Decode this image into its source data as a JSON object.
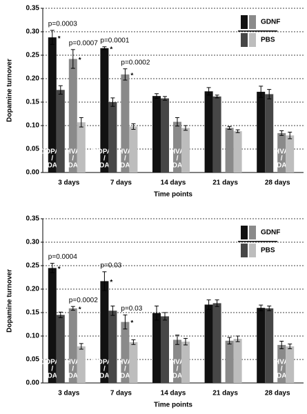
{
  "chart_data": [
    {
      "type": "bar",
      "categories": [
        "3 days",
        "7 days",
        "14 days",
        "21 days",
        "28 days"
      ],
      "xlabel": "Time points",
      "ylabel": "Dopamine turnover",
      "ylim": [
        0,
        0.35
      ],
      "yticks": [
        {
          "value": 0,
          "label": "0.00"
        },
        {
          "value": 0.05,
          "label": "0.05"
        },
        {
          "value": 0.1,
          "label": "0.10"
        },
        {
          "value": 0.15,
          "label": "0.15"
        },
        {
          "value": 0.2,
          "label": "0.20"
        },
        {
          "value": 0.25,
          "label": "0.25"
        },
        {
          "value": 0.3,
          "label": "0.30"
        },
        {
          "value": 0.35,
          "label": "0.35"
        }
      ],
      "grid": true,
      "series": [
        {
          "name": "GDNF",
          "color": "#111111",
          "values": [
            0.288,
            0.265,
            0.163,
            0.173,
            0.172
          ],
          "errors": [
            0.015,
            0.003,
            0.005,
            0.008,
            0.012
          ],
          "p_labels": [
            "p=0.0003",
            "p=0.0001",
            null,
            null,
            null
          ],
          "markers": [
            "*",
            "*",
            null,
            null,
            null
          ],
          "inner_labels": [
            [
              "DOPAC",
              "/",
              "DA"
            ],
            [
              "DOPAC",
              "/",
              "DA"
            ],
            null,
            null,
            null
          ]
        },
        {
          "name": "PBS",
          "color": "#474747",
          "values": [
            0.176,
            0.15,
            0.158,
            0.162,
            0.167
          ],
          "errors": [
            0.009,
            0.009,
            0.004,
            0.003,
            0.01
          ]
        },
        {
          "name": "GDNF",
          "color": "#8a8a8a",
          "values": [
            0.242,
            0.209,
            0.108,
            0.095,
            0.084
          ],
          "errors": [
            0.02,
            0.012,
            0.009,
            0.003,
            0.005
          ],
          "p_labels": [
            "p=0.0007",
            "p=0.0002",
            null,
            null,
            null
          ],
          "markers": [
            "*",
            "*",
            null,
            null,
            null
          ],
          "inner_labels": [
            [
              "HVA",
              "/",
              "DA"
            ],
            [
              "HVA",
              "/",
              "DA"
            ],
            [
              "HVA",
              "/",
              "DA"
            ],
            null,
            [
              "HVA",
              "/",
              "DA"
            ]
          ]
        },
        {
          "name": "PBS",
          "color": "#bdbdbd",
          "values": [
            0.107,
            0.098,
            0.095,
            0.088,
            0.079
          ],
          "errors": [
            0.01,
            0.006,
            0.005,
            0.003,
            0.007
          ]
        }
      ]
    },
    {
      "type": "bar",
      "categories": [
        "3 days",
        "7 days",
        "14 days",
        "21 days",
        "28 days"
      ],
      "xlabel": "Time points",
      "ylabel": "Dopamine turnover",
      "ylim": [
        0,
        0.35
      ],
      "yticks": [
        {
          "value": 0,
          "label": "0.00"
        },
        {
          "value": 0.05,
          "label": "0.05"
        },
        {
          "value": 0.1,
          "label": "0.10"
        },
        {
          "value": 0.15,
          "label": "0.15"
        },
        {
          "value": 0.2,
          "label": "0.20"
        },
        {
          "value": 0.25,
          "label": "0.25"
        },
        {
          "value": 0.3,
          "label": "0.30"
        },
        {
          "value": 0.35,
          "label": "0.35"
        }
      ],
      "grid": true,
      "series": [
        {
          "name": "GDNF",
          "color": "#111111",
          "values": [
            0.245,
            0.217,
            0.149,
            0.167,
            0.16
          ],
          "errors": [
            0.01,
            0.02,
            0.015,
            0.01,
            0.006
          ],
          "p_labels": [
            "p=0.0004",
            "p=0.03",
            null,
            null,
            null
          ],
          "markers": [
            "*",
            "*",
            null,
            null,
            null
          ],
          "inner_labels": [
            [
              "DOPAC",
              "/",
              "DA"
            ],
            [
              "DOPAC",
              "/",
              "DA"
            ],
            null,
            null,
            null
          ]
        },
        {
          "name": "PBS",
          "color": "#474747",
          "values": [
            0.145,
            0.154,
            0.142,
            0.17,
            0.159
          ],
          "errors": [
            0.006,
            0.01,
            0.008,
            0.007,
            0.005
          ]
        },
        {
          "name": "GDNF",
          "color": "#8a8a8a",
          "values": [
            0.159,
            0.13,
            0.092,
            0.09,
            0.081
          ],
          "errors": [
            0.004,
            0.015,
            0.01,
            0.007,
            0.008
          ],
          "p_labels": [
            "p=0.0002",
            "p=0.03",
            null,
            null,
            null
          ],
          "markers": [
            "*",
            "*",
            null,
            null,
            null
          ],
          "inner_labels": [
            [
              "HVA",
              "/",
              "DA"
            ],
            [
              "HVA",
              "/",
              "DA"
            ],
            [
              "HVA",
              "/",
              "DA"
            ],
            null,
            [
              "HVA",
              "/",
              "DA"
            ]
          ]
        },
        {
          "name": "PBS",
          "color": "#bdbdbd",
          "values": [
            0.078,
            0.087,
            0.088,
            0.094,
            0.078
          ],
          "errors": [
            0.006,
            0.005,
            0.007,
            0.006,
            0.005
          ]
        }
      ]
    }
  ]
}
